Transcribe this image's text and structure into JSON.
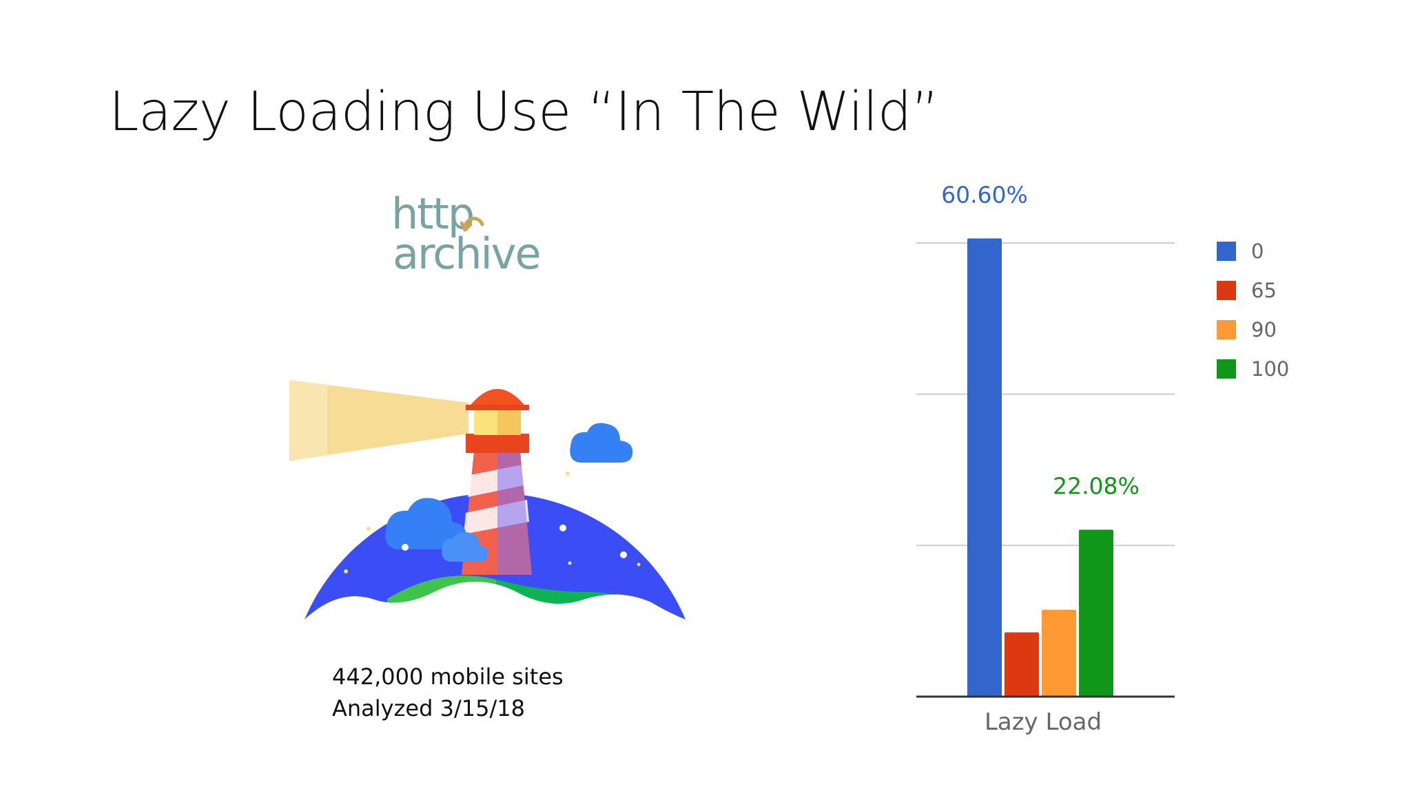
{
  "slide": {
    "title": "Lazy Loading Use “In The Wild”",
    "logo": {
      "line1": "http",
      "line2": "archive",
      "color": "#78a3a0"
    },
    "lighthouse_icon": "lighthouse-icon",
    "caption": {
      "line1": "442,000 mobile sites",
      "line2": "Analyzed 3/15/18"
    }
  },
  "chart_data": {
    "type": "bar",
    "categories": [
      "Lazy Load"
    ],
    "series": [
      {
        "name": "0",
        "values": [
          60.6
        ],
        "color": "#3366cc",
        "label": "60.60%"
      },
      {
        "name": "65",
        "values": [
          8.5
        ],
        "color": "#dc3912",
        "label": ""
      },
      {
        "name": "90",
        "values": [
          11.5
        ],
        "color": "#ff9933",
        "label": ""
      },
      {
        "name": "100",
        "values": [
          22.08
        ],
        "color": "#109618",
        "label": "22.08%"
      }
    ],
    "title": "",
    "xlabel": "",
    "ylabel": "",
    "ylim": [
      0,
      60
    ],
    "grid": true,
    "legend": "right"
  }
}
